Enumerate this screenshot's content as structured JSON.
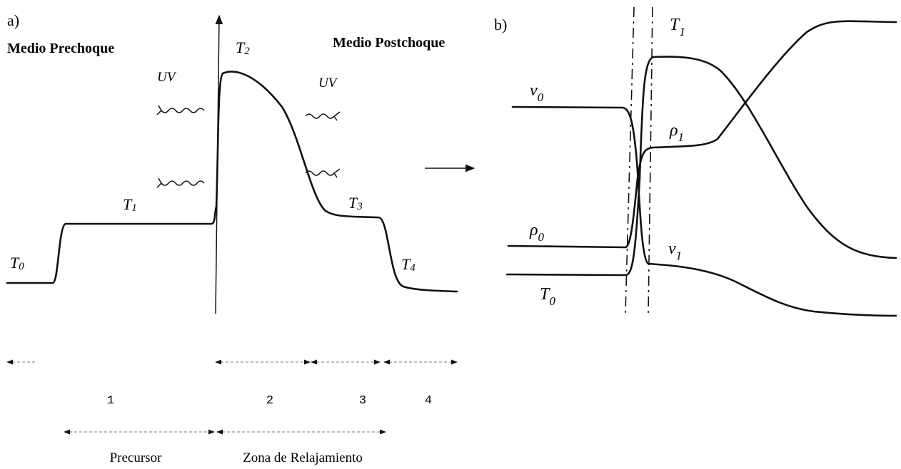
{
  "panel_a": {
    "tag": "a)",
    "left_medium": "Medio Prechoque",
    "right_medium": "Medio Postchoque",
    "uv_left": "UV",
    "uv_right": "UV",
    "levels": [
      {
        "main": "T",
        "sub": "0"
      },
      {
        "main": "T",
        "sub": "1"
      },
      {
        "main": "T",
        "sub": "2"
      },
      {
        "main": "T",
        "sub": "3"
      },
      {
        "main": "T",
        "sub": "4"
      }
    ],
    "zones": [
      "1",
      "2",
      "3",
      "4"
    ],
    "regions": [
      "Precursor",
      "Zona de Relajamiento"
    ]
  },
  "panel_b": {
    "tag": "b)",
    "labels": [
      {
        "main": "T",
        "sub": "1"
      },
      {
        "main": "v",
        "sub": "0"
      },
      {
        "main": "ρ",
        "sub": "1"
      },
      {
        "main": "ρ",
        "sub": "0"
      },
      {
        "main": "v",
        "sub": "1"
      },
      {
        "main": "T",
        "sub": "0"
      }
    ]
  }
}
